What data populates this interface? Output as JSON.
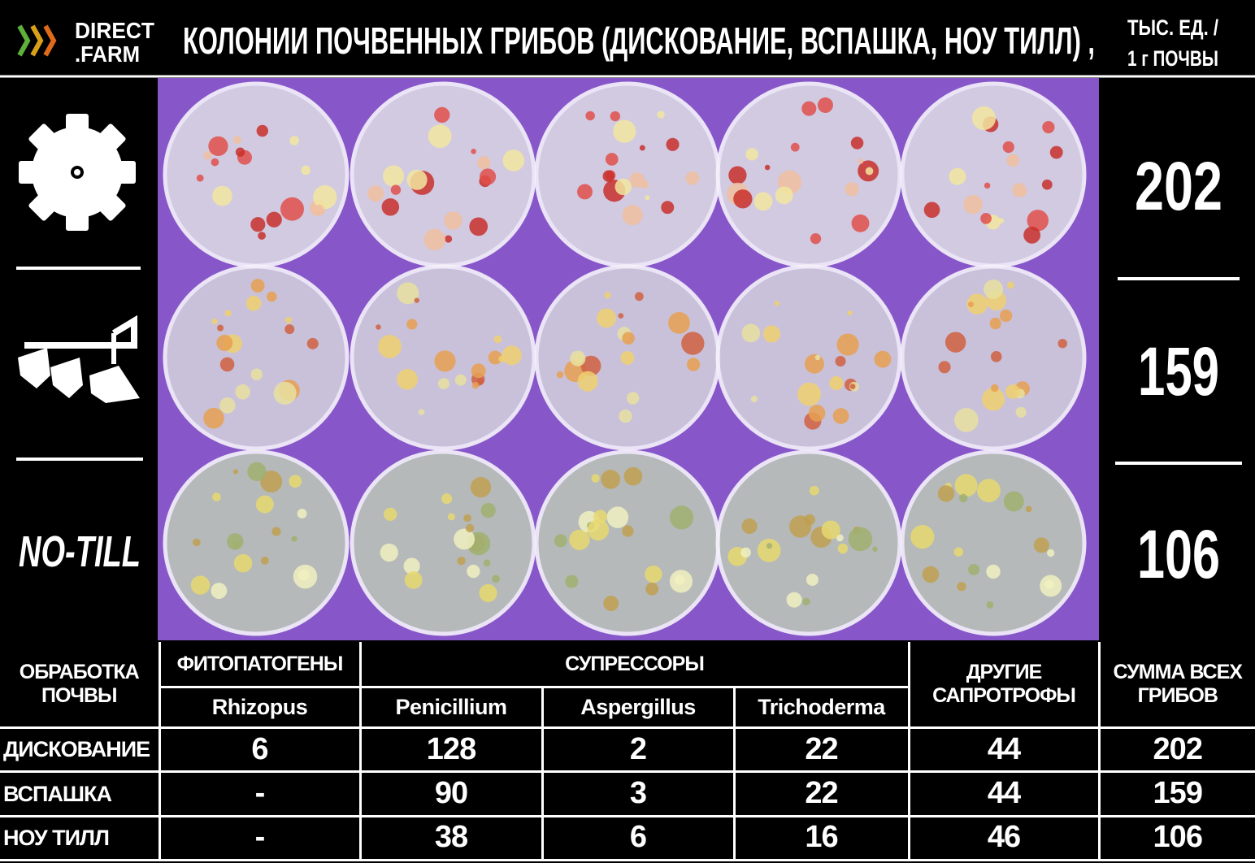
{
  "header": {
    "logo_line1": "DIRECT",
    "logo_line2": ".FARM",
    "title": "КОЛОНИИ ПОЧВЕННЫХ ГРИБОВ (ДИСКОВАНИЕ, ВСПАШКА, НОУ ТИЛЛ) ,",
    "unit_line1": "ТЫС. ЕД. /",
    "unit_line2": "1 г ПОЧВЫ"
  },
  "side": {
    "no_till_label": "NO-TILL",
    "totals": [
      202,
      159,
      106
    ]
  },
  "table": {
    "header": {
      "treatment": "ОБРАБОТКА ПОЧВЫ",
      "phytopathogens": "ФИТОПАТОГЕНЫ",
      "suppressors": "СУПРЕССОРЫ",
      "other": "ДРУГИЕ САПРОТРОФЫ",
      "total": "СУММА ВСЕХ ГРИБОВ"
    },
    "subheader": [
      "Rhizopus",
      "Penicillium",
      "Aspergillus",
      "Trichoderma"
    ],
    "rows": [
      [
        "ДИСКОВАНИЕ",
        6,
        128,
        2,
        22,
        44,
        202
      ],
      [
        "ВСПАШКА",
        "-",
        90,
        3,
        22,
        44,
        159
      ],
      [
        "НОУ ТИЛЛ",
        "-",
        38,
        6,
        16,
        46,
        106
      ]
    ]
  }
}
